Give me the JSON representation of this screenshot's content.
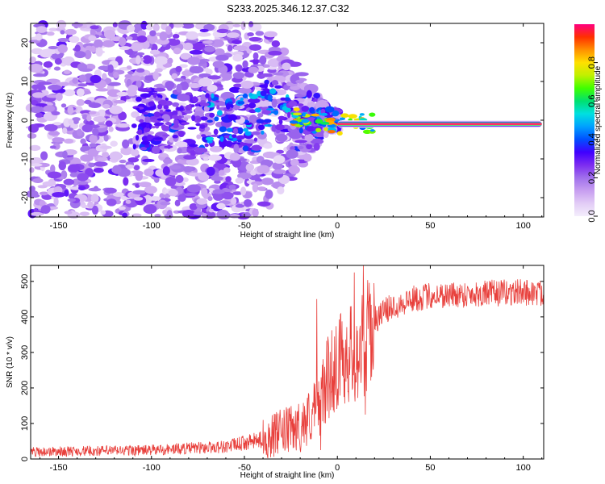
{
  "title": "S233.2025.346.12.37.C32",
  "chart_data": [
    {
      "type": "heatmap",
      "xlabel": "Height of straight line (km)",
      "ylabel": "Frequency (Hz)",
      "xlim": [
        -165,
        111
      ],
      "ylim": [
        -25,
        25
      ],
      "xticks": [
        -150,
        -100,
        -50,
        0,
        50,
        100
      ],
      "yticks": [
        -20,
        -10,
        0,
        10,
        20
      ],
      "colorbar": {
        "label": "Normalized spectral amplitude",
        "range": [
          0,
          1
        ],
        "ticks": [
          0.0,
          0.2,
          0.4,
          0.6,
          0.8
        ],
        "tick_labels": [
          "0.0",
          "0.2",
          "0.4",
          "0.6",
          "0.8"
        ],
        "colormap": [
          "#f4eefc",
          "#e2ccf6",
          "#c79ef0",
          "#a070ec",
          "#7c2cf0",
          "#4000ff",
          "#0050ff",
          "#00a0ff",
          "#00e0e0",
          "#00e070",
          "#40ff00",
          "#c0f000",
          "#ffe000",
          "#ff9000",
          "#ff3000",
          "#ff0080"
        ]
      },
      "description_of_data": "Scattered weak spectral blobs (purple) spread over +/-25 Hz for heights below about -40 km, narrowing toward 0 Hz near -30 km, and a single strong continuous line at about -1 Hz from 0 km to 110 km (amplitude about 1.0)."
    },
    {
      "type": "line",
      "xlabel": "Height of straight line (km)",
      "ylabel": "SNR (10 * v/v)",
      "xlim": [
        -165,
        111
      ],
      "ylim": [
        0,
        545
      ],
      "xticks": [
        -150,
        -100,
        -50,
        0,
        50,
        100
      ],
      "yticks": [
        0,
        100,
        200,
        300,
        400,
        500
      ],
      "color": "#e8403c",
      "envelope": {
        "x": [
          -165,
          -100,
          -60,
          -40,
          -30,
          -20,
          -15,
          -10,
          -5,
          0,
          5,
          10,
          15,
          20,
          25,
          30,
          40,
          50,
          75,
          100,
          111
        ],
        "mean": [
          20,
          25,
          35,
          55,
          75,
          90,
          120,
          150,
          230,
          270,
          300,
          290,
          330,
          390,
          415,
          430,
          450,
          460,
          465,
          470,
          465
        ]
      },
      "peaks": [
        {
          "x": -11,
          "y": 450
        },
        {
          "x": 9,
          "y": 525
        },
        {
          "x": 14,
          "y": 545
        },
        {
          "x": 15,
          "y": 125
        },
        {
          "x": -9,
          "y": 25
        }
      ]
    }
  ]
}
